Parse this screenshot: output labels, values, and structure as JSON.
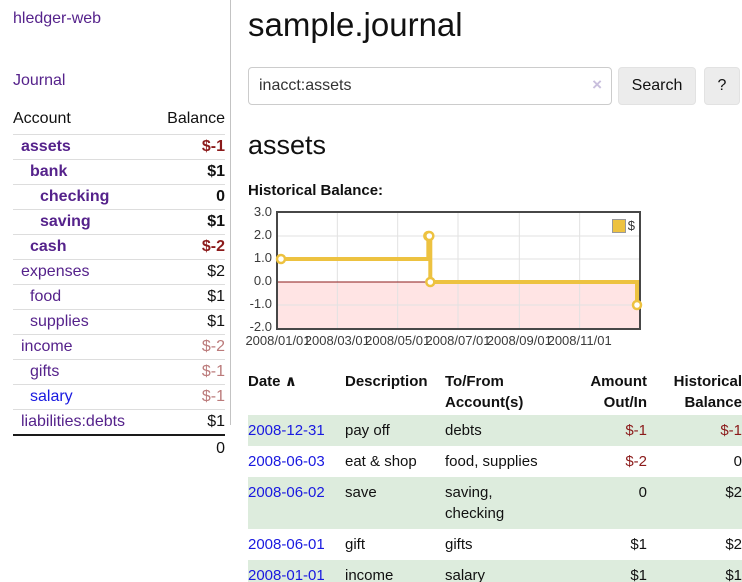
{
  "sidebar": {
    "brand": "hledger-web",
    "nav": {
      "journal": "Journal"
    },
    "accounts_table": {
      "headers": {
        "account": "Account",
        "balance": "Balance"
      },
      "rows": [
        {
          "name": "assets",
          "balance": "$-1",
          "depth": 1,
          "bold": true,
          "balance_tone": "neg",
          "link_tone": "purple"
        },
        {
          "name": "bank",
          "balance": "$1",
          "depth": 2,
          "bold": true,
          "balance_tone": "pos",
          "link_tone": "purple"
        },
        {
          "name": "checking",
          "balance": "0",
          "depth": 3,
          "bold": true,
          "balance_tone": "pos",
          "link_tone": "purple"
        },
        {
          "name": "saving",
          "balance": "$1",
          "depth": 3,
          "bold": true,
          "balance_tone": "pos",
          "link_tone": "purple"
        },
        {
          "name": "cash",
          "balance": "$-2",
          "depth": 2,
          "bold": true,
          "balance_tone": "neg",
          "link_tone": "purple"
        },
        {
          "name": "expenses",
          "balance": "$2",
          "depth": 1,
          "bold": false,
          "balance_tone": "pos",
          "link_tone": "purple"
        },
        {
          "name": "food",
          "balance": "$1",
          "depth": 2,
          "bold": false,
          "balance_tone": "pos",
          "link_tone": "purple"
        },
        {
          "name": "supplies",
          "balance": "$1",
          "depth": 2,
          "bold": false,
          "balance_tone": "pos",
          "link_tone": "purple"
        },
        {
          "name": "income",
          "balance": "$-2",
          "depth": 1,
          "bold": false,
          "balance_tone": "neg-dim",
          "link_tone": "purple"
        },
        {
          "name": "gifts",
          "balance": "$-1",
          "depth": 2,
          "bold": false,
          "balance_tone": "neg-dim",
          "link_tone": "purple"
        },
        {
          "name": "salary",
          "balance": "$-1",
          "depth": 2,
          "bold": false,
          "balance_tone": "neg-dim",
          "link_tone": "blue"
        },
        {
          "name": "liabilities:debts",
          "balance": "$1",
          "depth": 1,
          "bold": false,
          "balance_tone": "pos",
          "link_tone": "purple"
        }
      ],
      "total": "0"
    }
  },
  "header": {
    "title": "sample.journal"
  },
  "search": {
    "value": "inacct:assets",
    "clear_icon": "×",
    "button": "Search",
    "help_button": "?"
  },
  "account_page": {
    "heading": "assets",
    "chart_label": "Historical Balance:"
  },
  "chart_data": {
    "type": "line",
    "title": "Historical Balance",
    "series": [
      {
        "name": "$",
        "color": "#edc240",
        "step": true,
        "points": [
          [
            "2008/01/01",
            1
          ],
          [
            "2008/06/01",
            2
          ],
          [
            "2008/06/02",
            2
          ],
          [
            "2008/06/03",
            0
          ],
          [
            "2008/12/31",
            -1
          ]
        ]
      }
    ],
    "x_range": [
      "2008/01/01",
      "2008/12/31"
    ],
    "y_range": [
      -2,
      3
    ],
    "x_ticks": [
      "2008/01/01",
      "2008/03/01",
      "2008/05/01",
      "2008/07/01",
      "2008/09/01",
      "2008/11/01"
    ],
    "y_ticks": [
      "3.0",
      "2.0",
      "1.0",
      "0.0",
      "-1.0",
      "-2.0"
    ],
    "legend": {
      "label": "$",
      "position": "top-right"
    },
    "grid": true,
    "gridline_color": "#e2e2e2",
    "zero_line_color": "#8b1a1a",
    "negative_region_color": "rgba(255,77,77,0.15)",
    "plot_border_color": "#474747"
  },
  "register": {
    "columns": [
      {
        "label": "Date",
        "align": "left",
        "sorted": true
      },
      {
        "label": "Description",
        "align": "left"
      },
      {
        "label": "To/From Account(s)",
        "align": "left"
      },
      {
        "label": "Amount Out/In",
        "align": "right"
      },
      {
        "label": "Historical Balance",
        "align": "right"
      }
    ],
    "sort_icon": "∧",
    "rows": [
      {
        "date": "2008-12-31",
        "description": "pay off",
        "accounts": "debts",
        "amount": "$-1",
        "balance": "$-1"
      },
      {
        "date": "2008-06-03",
        "description": "eat & shop",
        "accounts": "food, supplies",
        "amount": "$-2",
        "balance": "0"
      },
      {
        "date": "2008-06-02",
        "description": "save",
        "accounts": "saving, checking",
        "amount": "0",
        "balance": "$2"
      },
      {
        "date": "2008-06-01",
        "description": "gift",
        "accounts": "gifts",
        "amount": "$1",
        "balance": "$2"
      },
      {
        "date": "2008-01-01",
        "description": "income",
        "accounts": "salary",
        "amount": "$1",
        "balance": "$1"
      }
    ]
  },
  "colors": {
    "link_purple": "#55228b",
    "link_blue": "#1919e0",
    "negative": "#8b1a1a",
    "negative_dim": "#bb7a7a",
    "row_stripe_green": "#ddecdd",
    "series_gold": "#edc240"
  }
}
